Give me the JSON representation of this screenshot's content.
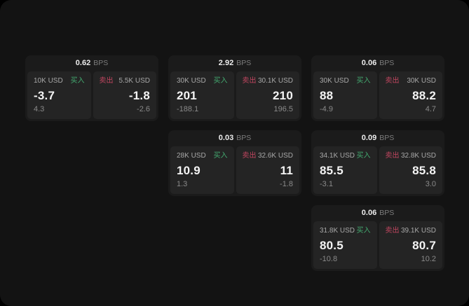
{
  "labels": {
    "bps": "BPS",
    "buy": "买入",
    "sell": "卖出"
  },
  "colors": {
    "background": "#131313",
    "card": "#1b1b1b",
    "panel": "#242424",
    "buy_green": "#43aa70",
    "sell_red": "#c24660",
    "text_primary": "#f4f4f4",
    "text_muted": "#8a8a8a"
  },
  "cards": [
    {
      "bps": "0.62",
      "buy": {
        "amount": "10K USD",
        "value": "-3.7",
        "delta": "4.3"
      },
      "sell": {
        "amount": "5.5K USD",
        "value": "-1.8",
        "delta": "-2.6"
      }
    },
    {
      "bps": "2.92",
      "buy": {
        "amount": "30K USD",
        "value": "201",
        "delta": "-188.1"
      },
      "sell": {
        "amount": "30.1K USD",
        "value": "210",
        "delta": "196.5"
      }
    },
    {
      "bps": "0.06",
      "buy": {
        "amount": "30K USD",
        "value": "88",
        "delta": "-4.9"
      },
      "sell": {
        "amount": "30K USD",
        "value": "88.2",
        "delta": "4.7"
      }
    },
    {
      "bps": "0.03",
      "buy": {
        "amount": "28K USD",
        "value": "10.9",
        "delta": "1.3"
      },
      "sell": {
        "amount": "32.6K USD",
        "value": "11",
        "delta": "-1.8"
      }
    },
    {
      "bps": "0.09",
      "buy": {
        "amount": "34.1K USD",
        "value": "85.5",
        "delta": "-3.1"
      },
      "sell": {
        "amount": "32.8K USD",
        "value": "85.8",
        "delta": "3.0"
      }
    },
    {
      "bps": "0.06",
      "buy": {
        "amount": "31.8K USD",
        "value": "80.5",
        "delta": "-10.8"
      },
      "sell": {
        "amount": "39.1K USD",
        "value": "80.7",
        "delta": "10.2"
      }
    }
  ]
}
